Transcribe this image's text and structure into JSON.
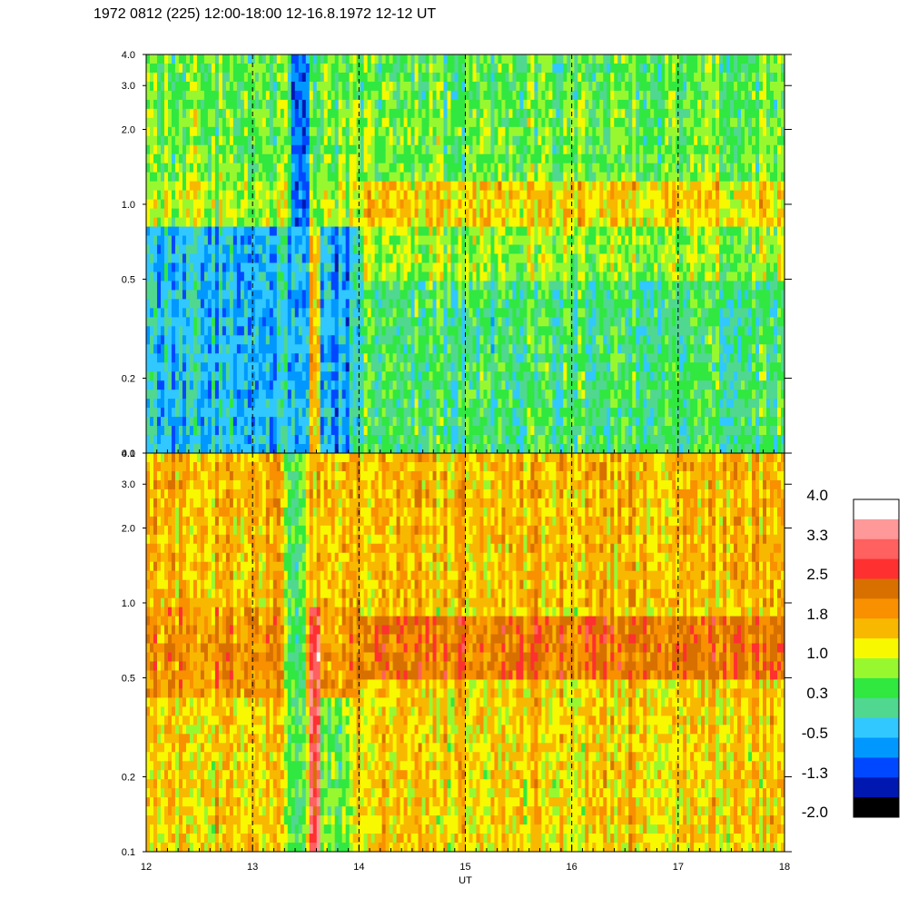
{
  "title": "1972 0812 (225) 12:00-18:00 12-16.8.1972  12-12 UT",
  "chart_data": [
    {
      "type": "heatmap",
      "panel": "top",
      "x_range": [
        12,
        18
      ],
      "x_ticks": [
        12,
        13,
        14,
        15,
        16,
        17,
        18
      ],
      "y_scale": "log",
      "y_range": [
        0.1,
        4.0
      ],
      "y_ticks": [
        0.1,
        0.2,
        0.5,
        1.0,
        2.0,
        3.0,
        4.0
      ],
      "y_tick_labels": [
        "0.1",
        "0.2",
        "0.5",
        "1.0",
        "2.0",
        "3.0",
        "4.0"
      ],
      "dashed_gridlines_x": [
        13,
        14,
        15,
        16,
        17
      ],
      "description_levels": {
        "background_low_freq": 0.3,
        "band_freq_range": [
          0.8,
          1.2
        ],
        "band_level_after_14": 1.4,
        "event_13_4_to_13_9": -1.0,
        "spike_at_13_6": 1.6
      }
    },
    {
      "type": "heatmap",
      "panel": "bottom",
      "x_range": [
        12,
        18
      ],
      "x_ticks": [
        12,
        13,
        14,
        15,
        16,
        17,
        18
      ],
      "x_tick_labels": [
        "12",
        "13",
        "14",
        "15",
        "16",
        "17",
        "18"
      ],
      "xlabel": "UT",
      "y_scale": "log",
      "y_range": [
        0.1,
        4.0
      ],
      "y_ticks": [
        0.1,
        0.2,
        0.5,
        1.0,
        2.0,
        3.0,
        4.0
      ],
      "y_tick_labels": [
        "0.1",
        "0.2",
        "0.5",
        "1.0",
        "2.0",
        "3.0",
        "4.0"
      ],
      "dashed_gridlines_x": [
        13,
        14,
        15,
        16,
        17
      ],
      "description_levels": {
        "background": 1.4,
        "band_freq_range": [
          0.5,
          0.9
        ],
        "band_level_after_14": 2.2,
        "spike_at_13_6": 3.0
      }
    }
  ],
  "colorbar": {
    "ticks": [
      "4.0",
      "3.3",
      "2.5",
      "1.8",
      "1.0",
      "0.3",
      "-0.5",
      "-1.3",
      "-2.0"
    ],
    "range": [
      -2.0,
      4.0
    ],
    "colors": [
      "#000000",
      "#0018b0",
      "#0048ff",
      "#0098ff",
      "#30c8ff",
      "#50d890",
      "#30e840",
      "#98f830",
      "#f8f800",
      "#f8b800",
      "#f89000",
      "#d87000",
      "#ff3030",
      "#ff6060",
      "#ff9898",
      "#ffffff"
    ]
  }
}
